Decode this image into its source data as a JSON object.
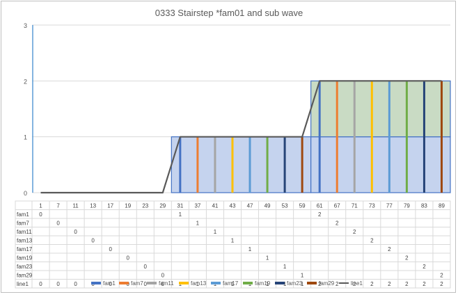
{
  "chart_data": {
    "type": "bar",
    "title": "0333 Stairstep *fam01 and sub wave",
    "xlabel": "",
    "ylabel": "",
    "ylim": [
      0,
      3
    ],
    "yticks": [
      "0",
      "1",
      "2",
      "3"
    ],
    "grid": true,
    "legend_position": "bottom",
    "categories": [
      "1",
      "7",
      "11",
      "13",
      "17",
      "19",
      "23",
      "29",
      "31",
      "37",
      "41",
      "43",
      "47",
      "49",
      "53",
      "59",
      "61",
      "67",
      "71",
      "73",
      "77",
      "79",
      "83",
      "89"
    ],
    "series": [
      {
        "name": "fam1",
        "color": "#4472c4",
        "values": [
          0,
          null,
          null,
          null,
          null,
          null,
          null,
          null,
          1,
          null,
          null,
          null,
          null,
          null,
          null,
          null,
          2,
          null,
          null,
          null,
          null,
          null,
          null,
          null
        ]
      },
      {
        "name": "fam7",
        "color": "#ed7d31",
        "values": [
          null,
          0,
          null,
          null,
          null,
          null,
          null,
          null,
          null,
          1,
          null,
          null,
          null,
          null,
          null,
          null,
          null,
          2,
          null,
          null,
          null,
          null,
          null,
          null
        ]
      },
      {
        "name": "fam11",
        "color": "#a5a5a5",
        "values": [
          null,
          null,
          0,
          null,
          null,
          null,
          null,
          null,
          null,
          null,
          1,
          null,
          null,
          null,
          null,
          null,
          null,
          null,
          2,
          null,
          null,
          null,
          null,
          null
        ]
      },
      {
        "name": "fam13",
        "color": "#ffc000",
        "values": [
          null,
          null,
          null,
          0,
          null,
          null,
          null,
          null,
          null,
          null,
          null,
          1,
          null,
          null,
          null,
          null,
          null,
          null,
          null,
          2,
          null,
          null,
          null,
          null
        ]
      },
      {
        "name": "fam17",
        "color": "#5b9bd5",
        "values": [
          null,
          null,
          null,
          null,
          0,
          null,
          null,
          null,
          null,
          null,
          null,
          null,
          1,
          null,
          null,
          null,
          null,
          null,
          null,
          null,
          2,
          null,
          null,
          null
        ]
      },
      {
        "name": "fam19",
        "color": "#70ad47",
        "values": [
          null,
          null,
          null,
          null,
          null,
          0,
          null,
          null,
          null,
          null,
          null,
          null,
          null,
          1,
          null,
          null,
          null,
          null,
          null,
          null,
          null,
          2,
          null,
          null
        ]
      },
      {
        "name": "fam23",
        "color": "#264478",
        "values": [
          null,
          null,
          null,
          null,
          null,
          null,
          0,
          null,
          null,
          null,
          null,
          null,
          null,
          null,
          1,
          null,
          null,
          null,
          null,
          null,
          null,
          null,
          2,
          null
        ]
      },
      {
        "name": "fam29",
        "color": "#9e480e",
        "values": [
          null,
          null,
          null,
          null,
          null,
          null,
          null,
          0,
          null,
          null,
          null,
          null,
          null,
          null,
          null,
          1,
          null,
          null,
          null,
          null,
          null,
          null,
          null,
          2
        ]
      },
      {
        "name": "line1",
        "color": "#595959",
        "type": "line",
        "values": [
          0,
          0,
          0,
          0,
          0,
          0,
          0,
          0,
          1,
          1,
          1,
          1,
          1,
          1,
          1,
          1,
          2,
          2,
          2,
          2,
          2,
          2,
          2,
          2
        ]
      }
    ]
  }
}
